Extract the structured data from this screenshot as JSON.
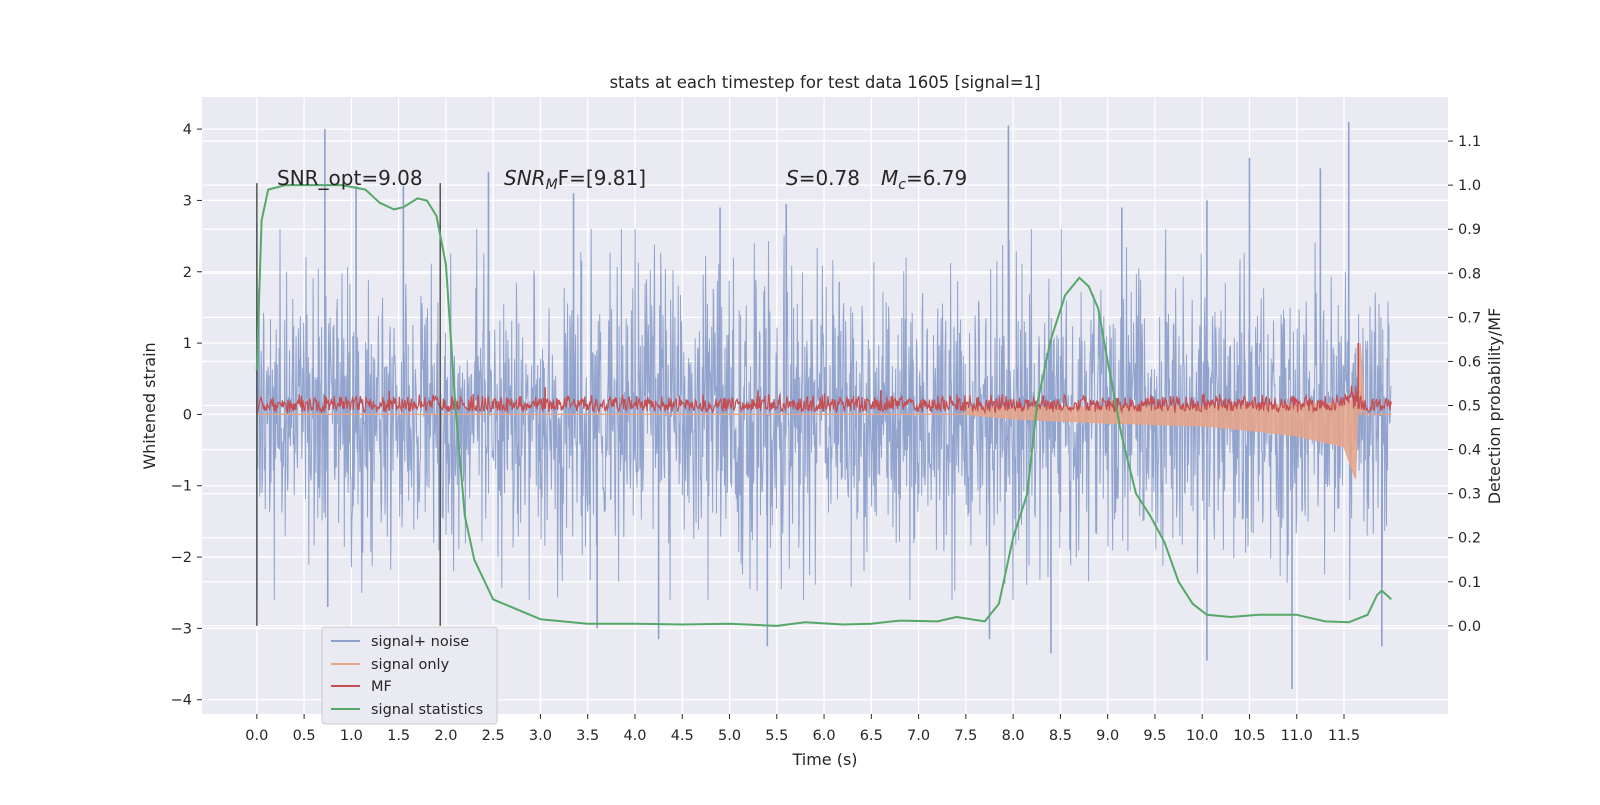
{
  "chart_data": {
    "type": "line",
    "title": "stats at each timestep for test data 1605 [signal=1]",
    "xlabel": "Time (s)",
    "ylabel": "Whitened strain",
    "y2label": "Detection probability/MF",
    "xlim": [
      -0.58,
      12.6
    ],
    "ylim": [
      -4.2,
      4.45
    ],
    "y2lim": [
      -0.2,
      1.2
    ],
    "grid": true,
    "x_ticks": [
      0.0,
      0.5,
      1.0,
      1.5,
      2.0,
      2.5,
      3.0,
      3.5,
      4.0,
      4.5,
      5.0,
      5.5,
      6.0,
      6.5,
      7.0,
      7.5,
      8.0,
      8.5,
      9.0,
      9.5,
      10.0,
      10.5,
      11.0,
      11.5
    ],
    "x_tick_labels": [
      "0.0",
      "0.5",
      "1.0",
      "1.5",
      "2.0",
      "2.5",
      "3.0",
      "3.5",
      "4.0",
      "4.5",
      "5.0",
      "5.5",
      "6.0",
      "6.5",
      "7.0",
      "7.5",
      "8.0",
      "8.5",
      "9.0",
      "9.5",
      "10.0",
      "10.5",
      "11.0",
      "11.5"
    ],
    "y_ticks": [
      4,
      3,
      2,
      1,
      0,
      -1,
      -2,
      -3,
      -4
    ],
    "y_tick_labels": [
      "4",
      "3",
      "2",
      "1",
      "0",
      "−1",
      "−2",
      "−3",
      "−4"
    ],
    "y2_ticks": [
      1.1,
      1.0,
      0.9,
      0.8,
      0.7,
      0.6,
      0.5,
      0.4,
      0.3,
      0.2,
      0.1,
      0.0
    ],
    "y2_tick_labels": [
      "1.1",
      "1.0",
      "0.9",
      "0.8",
      "0.7",
      "0.6",
      "0.5",
      "0.4",
      "0.3",
      "0.2",
      "0.1",
      "0.0"
    ],
    "legend_position": "lower-left",
    "legend": [
      "signal+ noise",
      "signal only",
      "MF",
      "signal statistics"
    ],
    "colors": {
      "signal_noise": "#8da0cb",
      "signal_only": "#e8a488",
      "mf": "#c44e52",
      "signal_statistics": "#55a868",
      "vline": "#555555",
      "plot_bg": "#eaeaf2",
      "grid": "#ffffff"
    },
    "annotations": [
      {
        "text": "SNR_opt=9.08"
      },
      {
        "var": "SNR",
        "sub": "M",
        "after": "F=[9.81]"
      },
      {
        "var": "S",
        "after": "=0.78"
      },
      {
        "var": "M",
        "sub": "c",
        "after": "=6.79"
      }
    ],
    "vertical_lines_x": [
      0.0,
      1.94
    ],
    "series": [
      {
        "name": "signal+ noise",
        "axis": "left",
        "x_range": [
          0.0,
          12.0
        ],
        "envelope_sd": 1.0,
        "peak_points": [
          [
            0.0,
            2.7
          ],
          [
            0.72,
            4.0
          ],
          [
            1.05,
            3.2
          ],
          [
            1.55,
            3.2
          ],
          [
            2.45,
            3.4
          ],
          [
            3.35,
            3.1
          ],
          [
            4.9,
            2.9
          ],
          [
            5.6,
            2.95
          ],
          [
            7.95,
            4.05
          ],
          [
            9.15,
            2.9
          ],
          [
            10.05,
            3.0
          ],
          [
            10.5,
            3.6
          ],
          [
            11.25,
            3.45
          ],
          [
            11.55,
            4.1
          ]
        ],
        "trough_points": [
          [
            0.0,
            -2.6
          ],
          [
            0.75,
            -2.7
          ],
          [
            3.6,
            -3.0
          ],
          [
            4.25,
            -3.15
          ],
          [
            5.4,
            -3.25
          ],
          [
            7.75,
            -3.15
          ],
          [
            8.4,
            -3.35
          ],
          [
            10.05,
            -3.45
          ],
          [
            10.95,
            -3.85
          ],
          [
            11.9,
            -3.25
          ]
        ]
      },
      {
        "name": "signal only",
        "axis": "left",
        "points": [
          [
            0.0,
            0.0
          ],
          [
            7.5,
            0.0
          ],
          [
            8.0,
            -0.06
          ],
          [
            9.0,
            -0.12
          ],
          [
            10.0,
            -0.16
          ],
          [
            10.5,
            -0.22
          ],
          [
            11.0,
            -0.3
          ],
          [
            11.5,
            -0.45
          ],
          [
            11.62,
            -0.9
          ],
          [
            11.67,
            1.0
          ],
          [
            11.72,
            0.0
          ],
          [
            12.0,
            0.0
          ]
        ]
      },
      {
        "name": "MF",
        "axis": "left",
        "x_range": [
          0.0,
          12.0
        ],
        "baseline": 0.08,
        "band": [
          0.02,
          0.3
        ],
        "peaks": [
          [
            0.0,
            0.35
          ],
          [
            1.4,
            0.33
          ],
          [
            3.05,
            0.38
          ],
          [
            5.3,
            0.33
          ],
          [
            6.6,
            0.34
          ],
          [
            11.65,
            1.0
          ]
        ]
      },
      {
        "name": "signal statistics",
        "axis": "right",
        "points": [
          [
            0.0,
            0.58
          ],
          [
            0.05,
            0.92
          ],
          [
            0.12,
            0.99
          ],
          [
            0.3,
            1.0
          ],
          [
            0.6,
            1.0
          ],
          [
            0.9,
            1.0
          ],
          [
            1.15,
            0.99
          ],
          [
            1.3,
            0.96
          ],
          [
            1.45,
            0.945
          ],
          [
            1.55,
            0.95
          ],
          [
            1.7,
            0.97
          ],
          [
            1.8,
            0.965
          ],
          [
            1.9,
            0.93
          ],
          [
            2.0,
            0.82
          ],
          [
            2.1,
            0.5
          ],
          [
            2.2,
            0.25
          ],
          [
            2.3,
            0.15
          ],
          [
            2.5,
            0.06
          ],
          [
            3.0,
            0.015
          ],
          [
            3.5,
            0.005
          ],
          [
            4.0,
            0.005
          ],
          [
            4.5,
            0.003
          ],
          [
            5.0,
            0.005
          ],
          [
            5.5,
            0.0
          ],
          [
            5.8,
            0.008
          ],
          [
            6.2,
            0.003
          ],
          [
            6.5,
            0.005
          ],
          [
            6.8,
            0.012
          ],
          [
            7.2,
            0.01
          ],
          [
            7.4,
            0.02
          ],
          [
            7.7,
            0.01
          ],
          [
            7.85,
            0.05
          ],
          [
            8.0,
            0.2
          ],
          [
            8.15,
            0.3
          ],
          [
            8.25,
            0.5
          ],
          [
            8.4,
            0.65
          ],
          [
            8.55,
            0.75
          ],
          [
            8.7,
            0.79
          ],
          [
            8.8,
            0.77
          ],
          [
            8.9,
            0.72
          ],
          [
            9.0,
            0.6
          ],
          [
            9.15,
            0.43
          ],
          [
            9.3,
            0.3
          ],
          [
            9.45,
            0.25
          ],
          [
            9.6,
            0.19
          ],
          [
            9.75,
            0.1
          ],
          [
            9.9,
            0.05
          ],
          [
            10.05,
            0.025
          ],
          [
            10.3,
            0.02
          ],
          [
            10.6,
            0.025
          ],
          [
            11.0,
            0.025
          ],
          [
            11.3,
            0.01
          ],
          [
            11.55,
            0.008
          ],
          [
            11.75,
            0.025
          ],
          [
            11.85,
            0.07
          ],
          [
            11.9,
            0.08
          ],
          [
            11.95,
            0.07
          ],
          [
            12.0,
            0.06
          ]
        ]
      }
    ]
  }
}
